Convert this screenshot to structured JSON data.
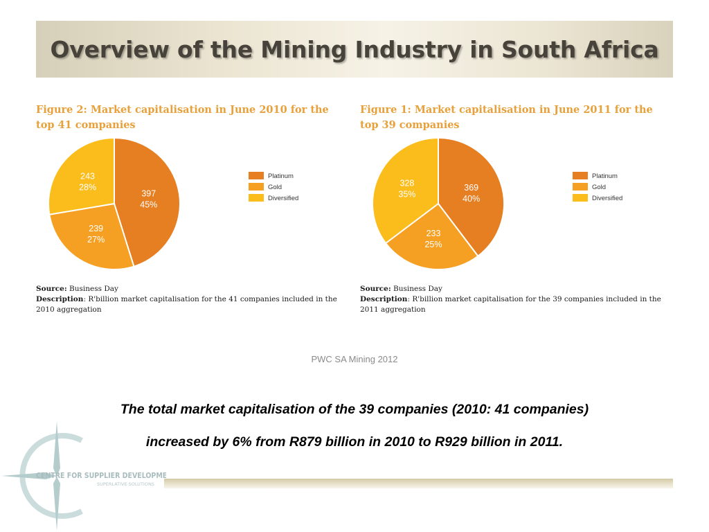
{
  "slide": {
    "title": "Overview of the Mining Industry in South Africa",
    "credit": "PWC SA Mining 2012",
    "summary_line1": "The total market capitalisation of the 39 companies (2010: 41 companies)",
    "summary_line2": "increased by 6% from R879 billion in 2010 to R929 billion in 2011."
  },
  "logo": {
    "line1": "CENTRE FOR SUPPLIER DEVELOPMENT",
    "line2": "SUPERLATIVE SOLUTIONS"
  },
  "colors": {
    "platinum": "#e67e22",
    "gold": "#f5a023",
    "diversified": "#fbbd1c",
    "fig_title": "#e8a03a"
  },
  "chart_data": [
    {
      "type": "pie",
      "title": "Figure 2: Market capitalisation in June 2010 for the top 41 companies",
      "title_line1": "Figure 2: Market capitalisation in June 2010 for the",
      "title_line2": "top 41 companies",
      "categories": [
        "Platinum",
        "Gold",
        "Diversified"
      ],
      "values": [
        397,
        239,
        243
      ],
      "labels": [
        "397",
        "239",
        "243"
      ],
      "percent_labels": [
        "45%",
        "27%",
        "28%"
      ],
      "source_label": "Source:",
      "source_text": " Business Day",
      "desc_label": "Description",
      "desc_text": ": R'billion market capitalisation for the 41 companies included in the 2010 aggregation",
      "legend_position": "right"
    },
    {
      "type": "pie",
      "title": "Figure 1: Market capitalisation in June 2011 for the top 39 companies",
      "title_line1": "Figure 1: Market capitalisation in June 2011 for the",
      "title_line2": "top 39 companies",
      "categories": [
        "Platinum",
        "Gold",
        "Diversified"
      ],
      "values": [
        369,
        233,
        328
      ],
      "labels": [
        "369",
        "233",
        "328"
      ],
      "percent_labels": [
        "40%",
        "25%",
        "35%"
      ],
      "source_label": "Source:",
      "source_text": " Business Day",
      "desc_label": "Description",
      "desc_text": ": R'billion market capitalisation for the 39 companies included in the 2011 aggregation",
      "legend_position": "right"
    }
  ]
}
